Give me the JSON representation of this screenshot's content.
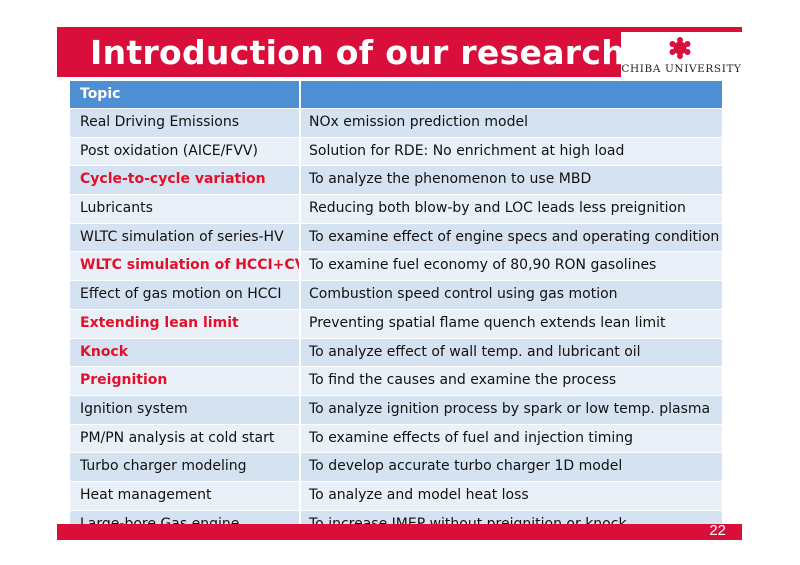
{
  "title": "Introduction of our research",
  "logo": {
    "text": "CHIBA UNIVERSITY",
    "brand_color": "#d90e3a"
  },
  "table": {
    "header": [
      "Topic",
      ""
    ],
    "rows": [
      {
        "topic": "Real Driving Emissions",
        "desc": "NOx emission prediction model",
        "highlight": false
      },
      {
        "topic": "Post oxidation (AICE/FVV)",
        "desc": "Solution for RDE: No enrichment at high load",
        "highlight": false
      },
      {
        "topic": "Cycle-to-cycle variation",
        "desc": "To analyze the phenomenon to use MBD",
        "highlight": true
      },
      {
        "topic": "Lubricants",
        "desc": "Reducing both blow-by and LOC leads less preignition",
        "highlight": false
      },
      {
        "topic": "WLTC simulation of series-HV",
        "desc": "To examine effect of engine specs and operating condition",
        "highlight": false
      },
      {
        "topic": "WLTC simulation of HCCI+CVT",
        "desc": "To examine fuel economy of 80,90 RON gasolines",
        "highlight": true
      },
      {
        "topic": "Effect of gas motion on HCCI",
        "desc": "Combustion speed control using gas motion",
        "highlight": false
      },
      {
        "topic": "Extending lean limit",
        "desc": "Preventing spatial flame quench extends lean limit",
        "highlight": true
      },
      {
        "topic": "Knock",
        "desc": "To analyze effect of wall temp. and lubricant oil",
        "highlight": true
      },
      {
        "topic": "Preignition",
        "desc": "To find the causes and examine the process",
        "highlight": true
      },
      {
        "topic": "Ignition system",
        "desc": "To analyze ignition process by spark or low temp. plasma",
        "highlight": false
      },
      {
        "topic": "PM/PN analysis at cold start",
        "desc": "To examine effects of fuel and injection timing",
        "highlight": false
      },
      {
        "topic": "Turbo charger modeling",
        "desc": "To develop accurate turbo charger 1D model",
        "highlight": false
      },
      {
        "topic": "Heat management",
        "desc": "To analyze and model heat loss",
        "highlight": false
      },
      {
        "topic": "Large-bore Gas engine",
        "desc": "To increase IMEP without preignition or knock",
        "highlight": false
      }
    ]
  },
  "page_number": "22",
  "colors": {
    "header_blue": "#4e8fd3",
    "row_light": "#d5e2f1",
    "row_lighter": "#eaf0f8",
    "highlight_red": "#e3102a"
  }
}
